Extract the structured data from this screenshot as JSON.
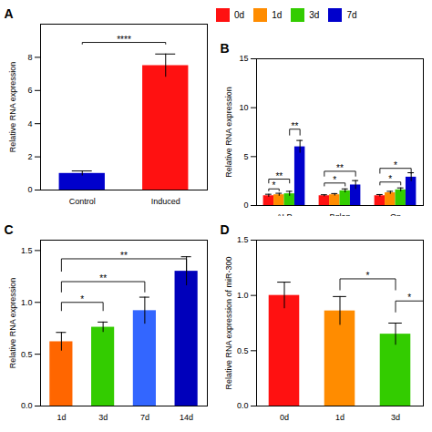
{
  "chart_data": [
    {
      "type": "bar",
      "title": "A",
      "categories": [
        "Control",
        "Induced"
      ],
      "values": [
        1.0,
        7.5
      ],
      "errors": [
        0.15,
        0.7
      ],
      "colors": [
        "#0000CC",
        "#FF1111"
      ],
      "ylabel": "Relative RNA expression",
      "ylim": [
        0,
        10
      ],
      "yticks": [
        0,
        2,
        4,
        6,
        8
      ],
      "annotations": [
        {
          "text": "****",
          "x": [
            0,
            1
          ],
          "y": [
            8.8,
            8.9
          ]
        }
      ]
    },
    {
      "type": "bar",
      "title": "B",
      "categories": [
        "ALP",
        "Bglap",
        "Op"
      ],
      "series": [
        {
          "name": "0d",
          "color": "#FF1111",
          "values": [
            1.0,
            1.0,
            1.0
          ],
          "errors": [
            0.15,
            0.1,
            0.12
          ]
        },
        {
          "name": "1d",
          "color": "#FF8C00",
          "values": [
            1.1,
            1.1,
            1.3
          ],
          "errors": [
            0.15,
            0.12,
            0.15
          ]
        },
        {
          "name": "3d",
          "color": "#33CC00",
          "values": [
            1.2,
            1.5,
            1.6
          ],
          "errors": [
            0.25,
            0.2,
            0.2
          ]
        },
        {
          "name": "7d",
          "color": "#0000CC",
          "values": [
            6.0,
            2.1,
            2.9
          ],
          "errors": [
            0.65,
            0.45,
            0.45
          ]
        }
      ],
      "ylabel": "Relative RNA expression",
      "ylim": [
        0,
        15
      ],
      "yticks": [
        0,
        5,
        10,
        15
      ],
      "legend": "upper left",
      "annotations": [
        {
          "text": "*",
          "group": "ALP",
          "series": [
            "0d",
            "1d"
          ],
          "y": [
            1.5,
            1.7
          ]
        },
        {
          "text": "**",
          "group": "ALP",
          "series": [
            "0d",
            "3d"
          ],
          "y": [
            2.3,
            2.7
          ]
        },
        {
          "text": "**",
          "group": "ALP",
          "series": [
            "3d",
            "7d"
          ],
          "y": [
            7.2,
            7.8
          ]
        },
        {
          "text": "*",
          "group": "Bglap",
          "series": [
            "0d",
            "3d"
          ],
          "y": [
            2.0,
            2.3
          ]
        },
        {
          "text": "**",
          "group": "Bglap",
          "series": [
            "0d",
            "7d"
          ],
          "y": [
            3.0,
            3.5
          ]
        },
        {
          "text": "*",
          "group": "Op",
          "series": [
            "0d",
            "3d"
          ],
          "y": [
            2.1,
            2.4
          ]
        },
        {
          "text": "*",
          "group": "Op",
          "series": [
            "0d",
            "7d"
          ],
          "y": [
            3.3,
            3.8
          ]
        }
      ]
    },
    {
      "type": "bar",
      "title": "C",
      "categories": [
        "1d",
        "3d",
        "7d",
        "14d"
      ],
      "values": [
        0.62,
        0.76,
        0.92,
        1.3
      ],
      "errors": [
        0.09,
        0.05,
        0.13,
        0.14
      ],
      "colors": [
        "#FF6600",
        "#33CC00",
        "#3366FF",
        "#0000BB"
      ],
      "ylabel": "Relative RNA expression",
      "ylim": [
        0,
        1.6
      ],
      "yticks": [
        {
          "value": 0.0,
          "label": "0.0"
        },
        0.5,
        {
          "value": 1.0,
          "label": "1.0"
        },
        1.5
      ],
      "annotations": [
        {
          "text": "*",
          "x": [
            0,
            1
          ],
          "y": [
            0.92,
            1.0
          ]
        },
        {
          "text": "**",
          "x": [
            0,
            2
          ],
          "y": [
            1.1,
            1.2
          ]
        },
        {
          "text": "**",
          "x": [
            0,
            3
          ],
          "y": [
            1.3,
            1.42
          ]
        }
      ]
    },
    {
      "type": "bar",
      "title": "D",
      "categories": [
        "0d",
        "1d",
        "3d"
      ],
      "values": [
        1.0,
        0.86,
        0.65
      ],
      "errors": [
        0.12,
        0.13,
        0.1
      ],
      "colors": [
        "#FF1111",
        "#FF8C00",
        "#33CC00"
      ],
      "ylabel": "Relative RNA expression of miR-300",
      "ylim": [
        0,
        1.5
      ],
      "yticks": [
        {
          "value": 0.0,
          "label": "0.0"
        },
        0.5,
        {
          "value": 1.0,
          "label": "1.0"
        },
        1.5
      ],
      "annotations": [
        {
          "text": "*",
          "x": [
            1,
            2
          ],
          "y": [
            1.05,
            1.15
          ]
        },
        {
          "text": "*",
          "x": [
            2,
            2.5
          ],
          "y": [
            0.85,
            0.95
          ]
        }
      ]
    }
  ]
}
